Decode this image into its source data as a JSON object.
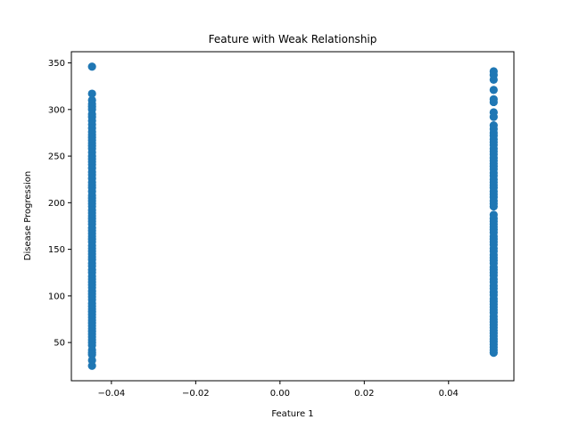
{
  "chart_data": {
    "type": "scatter",
    "title": "Feature with Weak Relationship",
    "xlabel": "Feature 1",
    "ylabel": "Disease Progression",
    "xlim": [
      -0.0495,
      0.0555
    ],
    "ylim": [
      9,
      362
    ],
    "xticks": [
      -0.04,
      -0.02,
      0.0,
      0.02,
      0.04
    ],
    "xtick_labels": [
      "−0.04",
      "−0.02",
      "0.00",
      "0.02",
      "0.04"
    ],
    "yticks": [
      50,
      100,
      150,
      200,
      250,
      300,
      350
    ],
    "ytick_labels": [
      "50",
      "100",
      "150",
      "200",
      "250",
      "300",
      "350"
    ],
    "grid": false,
    "marker_color": "#1f77b4",
    "series": [
      {
        "x_value": -0.0446,
        "y": [
          346,
          317,
          310,
          306,
          303,
          300,
          295,
          292,
          288,
          284,
          280,
          276,
          273,
          270,
          267,
          264,
          261,
          258,
          254,
          250,
          247,
          244,
          241,
          237,
          233,
          230,
          226,
          222,
          219,
          216,
          212,
          208,
          205,
          202,
          199,
          196,
          192,
          189,
          186,
          183,
          180,
          177,
          173,
          170,
          167,
          164,
          161,
          158,
          154,
          151,
          148,
          145,
          142,
          139,
          135,
          132,
          128,
          125,
          121,
          118,
          115,
          112,
          109,
          105,
          102,
          99,
          96,
          92,
          89,
          86,
          83,
          80,
          77,
          74,
          71,
          68,
          65,
          62,
          59,
          56,
          53,
          50,
          47,
          42,
          39,
          37,
          31,
          25
        ]
      },
      {
        "x_value": 0.0507,
        "y": [
          341,
          337,
          332,
          321,
          311,
          308,
          297,
          292,
          283,
          279,
          275,
          272,
          268,
          265,
          262,
          258,
          255,
          252,
          248,
          245,
          242,
          239,
          236,
          232,
          229,
          225,
          222,
          219,
          216,
          212,
          209,
          206,
          202,
          199,
          196,
          187,
          183,
          180,
          177,
          174,
          171,
          168,
          164,
          161,
          158,
          155,
          151,
          148,
          144,
          141,
          138,
          135,
          131,
          128,
          125,
          122,
          118,
          115,
          111,
          108,
          104,
          101,
          97,
          94,
          91,
          88,
          85,
          82,
          78,
          75,
          72,
          69,
          66,
          63,
          60,
          57,
          54,
          51,
          48,
          45,
          42,
          39
        ]
      }
    ]
  }
}
